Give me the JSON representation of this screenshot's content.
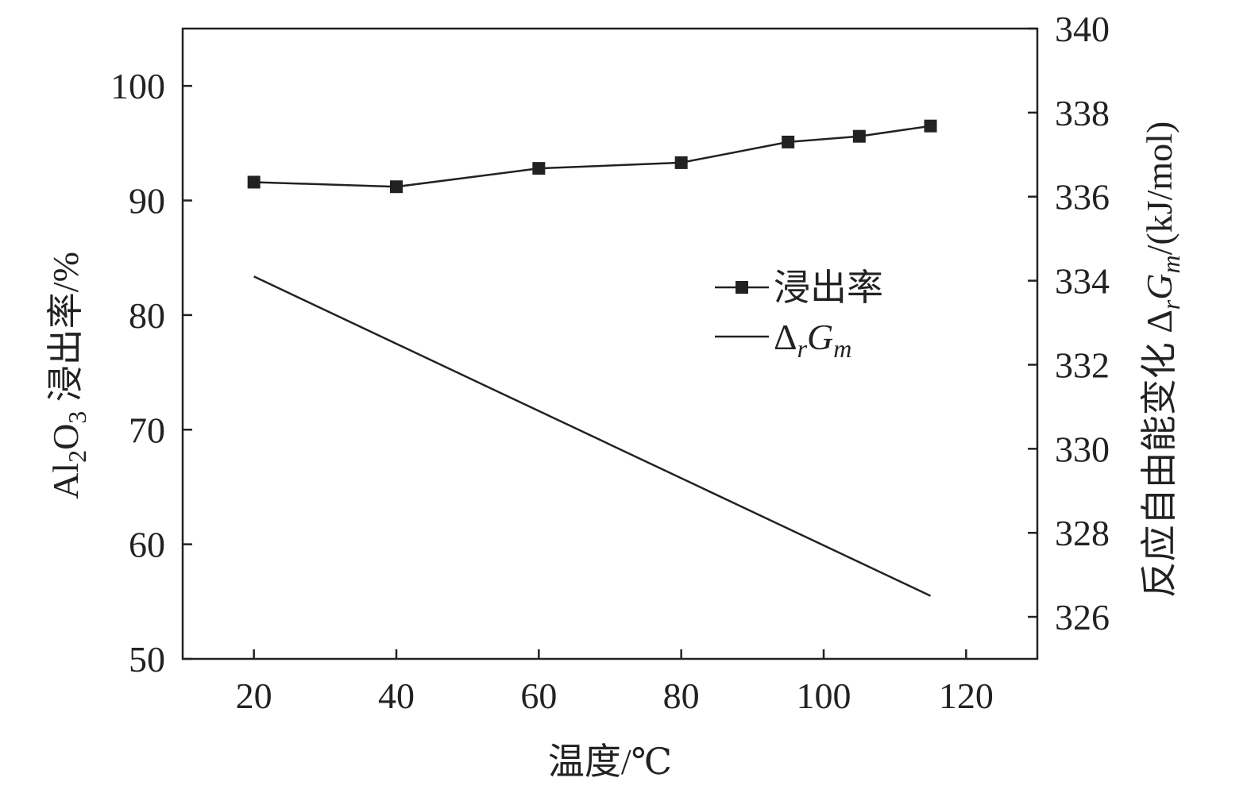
{
  "chart_data": {
    "type": "line",
    "xlabel": "温度/℃",
    "ylabel": "Al2O3 浸出率/%",
    "y2label": "反应自由能变化 ΔrGm/(kJ/mol)",
    "xlim": [
      10,
      130
    ],
    "ylim": [
      50,
      105
    ],
    "y2lim": [
      325,
      340
    ],
    "x_ticks": [
      20,
      40,
      60,
      80,
      100,
      120
    ],
    "y_ticks": [
      50,
      60,
      70,
      80,
      90,
      100
    ],
    "y2_ticks": [
      326,
      328,
      330,
      332,
      334,
      336,
      338,
      340
    ],
    "grid": false,
    "legend_position": "center-right",
    "series": [
      {
        "name": "浸出率",
        "axis": "left",
        "marker": "square",
        "x": [
          20,
          40,
          60,
          80,
          95,
          105,
          115
        ],
        "values": [
          91.6,
          91.2,
          92.8,
          93.3,
          95.1,
          95.6,
          96.5
        ]
      },
      {
        "name": "ΔrGm",
        "axis": "right",
        "marker": "none",
        "x": [
          20,
          115
        ],
        "values": [
          334.1,
          326.5
        ]
      }
    ],
    "colors": {
      "line": "#222222",
      "axis": "#222222"
    }
  }
}
